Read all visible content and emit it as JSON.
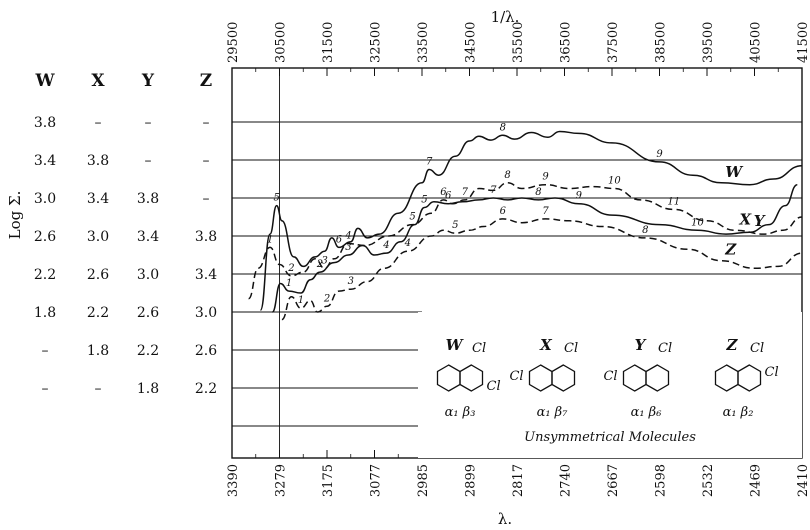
{
  "chart_data": {
    "type": "line",
    "title": "",
    "top_axis": {
      "label": "1/λ.",
      "ticks": [
        "29500",
        "30500",
        "31500",
        "32500",
        "33500",
        "34500",
        "35500",
        "36500",
        "37500",
        "38500",
        "39500",
        "40500",
        "41500"
      ]
    },
    "bottom_axis": {
      "label": "λ.",
      "ticks": [
        "3390",
        "3279",
        "3175",
        "3077",
        "2985",
        "2899",
        "2817",
        "2740",
        "2667",
        "2598",
        "2532",
        "2469",
        "2410"
      ]
    },
    "ylabel": "Log Σ.",
    "scale_columns": {
      "headers": [
        "W",
        "X",
        "Y",
        "Z"
      ],
      "rows": [
        [
          "3.8",
          "–",
          "–",
          "–"
        ],
        [
          "3.4",
          "3.8",
          "–",
          "–"
        ],
        [
          "3.0",
          "3.4",
          "3.8",
          "–"
        ],
        [
          "2.6",
          "3.0",
          "3.4",
          "3.8"
        ],
        [
          "2.2",
          "2.6",
          "3.0",
          "3.4"
        ],
        [
          "1.8",
          "2.2",
          "2.6",
          "3.0"
        ],
        [
          "–",
          "1.8",
          "2.2",
          "2.6"
        ],
        [
          "–",
          "–",
          "1.8",
          "2.2"
        ]
      ]
    },
    "x_unit": "wavenumber (1/λ)",
    "grid": true,
    "series": [
      {
        "name": "W",
        "style": "solid",
        "points": [
          [
            30100,
            1.82
          ],
          [
            30300,
            2.62
          ],
          [
            30440,
            2.92
          ],
          [
            30550,
            2.76
          ],
          [
            30800,
            2.38
          ],
          [
            31000,
            2.28
          ],
          [
            31250,
            2.38
          ],
          [
            31450,
            2.44
          ],
          [
            31600,
            2.58
          ],
          [
            31750,
            2.48
          ],
          [
            32000,
            2.54
          ],
          [
            32150,
            2.68
          ],
          [
            32350,
            2.58
          ],
          [
            32600,
            2.62
          ],
          [
            33000,
            2.84
          ],
          [
            33500,
            3.16
          ],
          [
            33650,
            3.3
          ],
          [
            33850,
            3.24
          ],
          [
            34200,
            3.44
          ],
          [
            34500,
            3.6
          ],
          [
            34700,
            3.65
          ],
          [
            34950,
            3.61
          ],
          [
            35200,
            3.66
          ],
          [
            35450,
            3.62
          ],
          [
            35800,
            3.69
          ],
          [
            36150,
            3.64
          ],
          [
            36400,
            3.7
          ],
          [
            36800,
            3.68
          ],
          [
            37500,
            3.58
          ],
          [
            38500,
            3.38
          ],
          [
            39200,
            3.24
          ],
          [
            39800,
            3.16
          ],
          [
            40400,
            3.14
          ],
          [
            40900,
            3.2
          ],
          [
            41500,
            3.34
          ]
        ],
        "peaks": [
          "5",
          "6",
          "7",
          "8",
          "9"
        ]
      },
      {
        "name": "X",
        "style": "dashed",
        "points": [
          [
            29850,
            1.94
          ],
          [
            30050,
            2.26
          ],
          [
            30300,
            2.48
          ],
          [
            30500,
            2.3
          ],
          [
            30750,
            2.18
          ],
          [
            31000,
            2.22
          ],
          [
            31250,
            2.36
          ],
          [
            31450,
            2.26
          ],
          [
            31650,
            2.36
          ],
          [
            31950,
            2.52
          ],
          [
            32300,
            2.5
          ],
          [
            32800,
            2.6
          ],
          [
            33300,
            2.72
          ],
          [
            33700,
            2.84
          ],
          [
            33950,
            2.98
          ],
          [
            34150,
            2.94
          ],
          [
            34400,
            2.98
          ],
          [
            34700,
            3.1
          ],
          [
            35000,
            3.08
          ],
          [
            35300,
            3.16
          ],
          [
            35600,
            3.1
          ],
          [
            36100,
            3.14
          ],
          [
            36600,
            3.1
          ],
          [
            37100,
            3.12
          ],
          [
            37550,
            3.1
          ],
          [
            38100,
            2.98
          ],
          [
            38800,
            2.88
          ],
          [
            39500,
            2.76
          ],
          [
            40100,
            2.66
          ],
          [
            40700,
            2.62
          ],
          [
            41100,
            2.66
          ],
          [
            41500,
            2.8
          ]
        ],
        "peaks": [
          "1",
          "2",
          "3",
          "4",
          "5",
          "6",
          "7",
          "8",
          "9",
          "10",
          "11"
        ]
      },
      {
        "name": "Y",
        "style": "solid",
        "points": [
          [
            30350,
            1.8
          ],
          [
            30520,
            2.1
          ],
          [
            30700,
            2.02
          ],
          [
            30950,
            2.0
          ],
          [
            31150,
            2.14
          ],
          [
            31350,
            2.22
          ],
          [
            31650,
            2.32
          ],
          [
            31950,
            2.4
          ],
          [
            32250,
            2.5
          ],
          [
            32500,
            2.4
          ],
          [
            32750,
            2.42
          ],
          [
            33050,
            2.54
          ],
          [
            33350,
            2.72
          ],
          [
            33550,
            2.9
          ],
          [
            33750,
            2.96
          ],
          [
            34050,
            2.94
          ],
          [
            34350,
            2.96
          ],
          [
            34700,
            2.98
          ],
          [
            35000,
            3.0
          ],
          [
            35300,
            2.98
          ],
          [
            35600,
            3.0
          ],
          [
            35950,
            2.98
          ],
          [
            36300,
            3.0
          ],
          [
            36800,
            2.94
          ],
          [
            37500,
            2.82
          ],
          [
            38500,
            2.72
          ],
          [
            39300,
            2.66
          ],
          [
            39900,
            2.62
          ],
          [
            40400,
            2.64
          ],
          [
            40800,
            2.72
          ],
          [
            41150,
            2.92
          ],
          [
            41400,
            3.14
          ]
        ],
        "peaks": [
          "1",
          "2",
          "3",
          "4",
          "5",
          "6",
          "7",
          "8",
          "9",
          "10"
        ]
      },
      {
        "name": "Z",
        "style": "dashed",
        "points": [
          [
            30550,
            1.72
          ],
          [
            30750,
            1.96
          ],
          [
            30950,
            1.84
          ],
          [
            31150,
            1.92
          ],
          [
            31300,
            1.8
          ],
          [
            31500,
            1.86
          ],
          [
            31750,
            2.02
          ],
          [
            32000,
            2.04
          ],
          [
            32350,
            2.12
          ],
          [
            32700,
            2.26
          ],
          [
            33200,
            2.44
          ],
          [
            33700,
            2.6
          ],
          [
            33950,
            2.66
          ],
          [
            34200,
            2.63
          ],
          [
            34500,
            2.66
          ],
          [
            34800,
            2.7
          ],
          [
            35200,
            2.78
          ],
          [
            35600,
            2.74
          ],
          [
            36100,
            2.78
          ],
          [
            36600,
            2.76
          ],
          [
            37300,
            2.7
          ],
          [
            38200,
            2.58
          ],
          [
            39100,
            2.46
          ],
          [
            39800,
            2.34
          ],
          [
            40500,
            2.26
          ],
          [
            41000,
            2.28
          ],
          [
            41500,
            2.42
          ]
        ],
        "peaks": [
          "1",
          "2",
          "3",
          "4",
          "5",
          "6",
          "7",
          "8"
        ]
      }
    ],
    "inset": {
      "caption": "Unsymmetrical Molecules",
      "structures": [
        {
          "label": "W",
          "subst": "Cl",
          "subst2": "Cl",
          "position": "α₁ β₃"
        },
        {
          "label": "X",
          "subst": "Cl",
          "subst2": "Cl",
          "position": "α₁ β₇"
        },
        {
          "label": "Y",
          "subst": "Cl",
          "subst2": "Cl",
          "position": "α₁ β₆"
        },
        {
          "label": "Z",
          "subst": "Cl",
          "subst2": "Cl",
          "position": "α₁ β₂"
        }
      ]
    }
  }
}
